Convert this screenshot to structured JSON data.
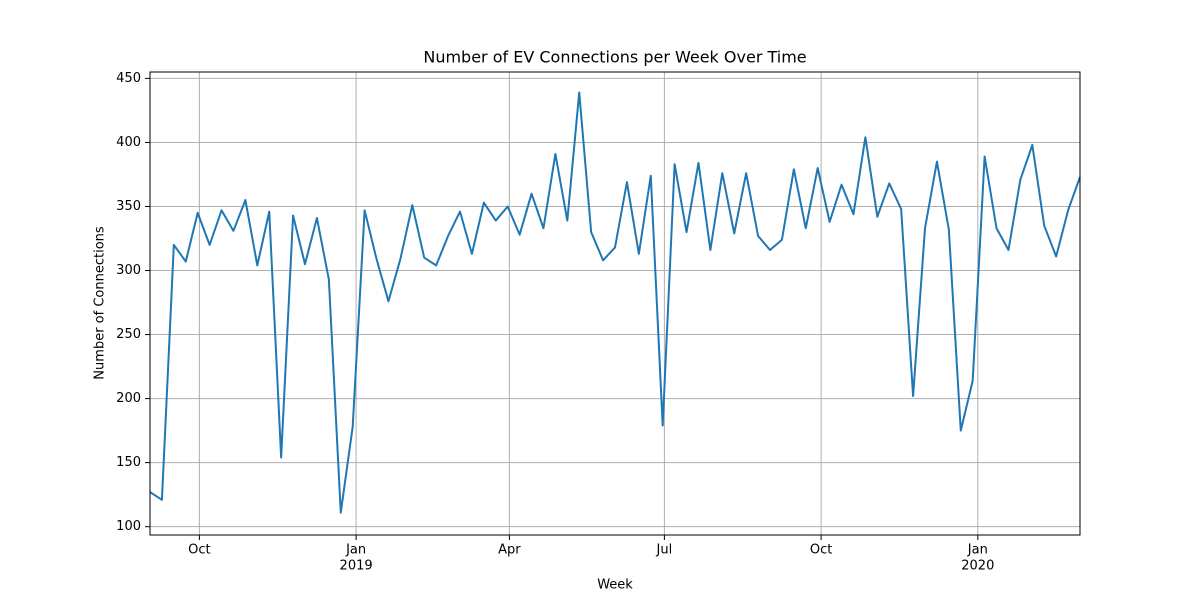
{
  "chart_data": {
    "type": "line",
    "title": "Number of EV Connections per Week Over Time",
    "x_label": "Week",
    "y_label": "Number of Connections",
    "x": [
      "2018-09-02",
      "2018-09-09",
      "2018-09-16",
      "2018-09-23",
      "2018-09-30",
      "2018-10-07",
      "2018-10-14",
      "2018-10-21",
      "2018-10-28",
      "2018-11-04",
      "2018-11-11",
      "2018-11-18",
      "2018-11-25",
      "2018-12-02",
      "2018-12-09",
      "2018-12-16",
      "2018-12-23",
      "2018-12-30",
      "2019-01-06",
      "2019-01-13",
      "2019-01-20",
      "2019-01-27",
      "2019-02-03",
      "2019-02-10",
      "2019-02-17",
      "2019-02-24",
      "2019-03-03",
      "2019-03-10",
      "2019-03-17",
      "2019-03-24",
      "2019-03-31",
      "2019-04-07",
      "2019-04-14",
      "2019-04-21",
      "2019-04-28",
      "2019-05-05",
      "2019-05-12",
      "2019-05-19",
      "2019-05-26",
      "2019-06-02",
      "2019-06-09",
      "2019-06-16",
      "2019-06-23",
      "2019-06-30",
      "2019-07-07",
      "2019-07-14",
      "2019-07-21",
      "2019-07-28",
      "2019-08-04",
      "2019-08-11",
      "2019-08-18",
      "2019-08-25",
      "2019-09-01",
      "2019-09-08",
      "2019-09-15",
      "2019-09-22",
      "2019-09-29",
      "2019-10-06",
      "2019-10-13",
      "2019-10-20",
      "2019-10-27",
      "2019-11-03",
      "2019-11-10",
      "2019-11-17",
      "2019-11-24",
      "2019-12-01",
      "2019-12-08",
      "2019-12-15",
      "2019-12-22",
      "2019-12-29",
      "2020-01-05",
      "2020-01-12",
      "2020-01-19",
      "2020-01-26",
      "2020-02-02",
      "2020-02-09",
      "2020-02-16",
      "2020-02-23",
      "2020-03-01"
    ],
    "series": [
      {
        "name": "Connections",
        "color": "#1f77b4",
        "values": [
          127,
          121,
          320,
          307,
          345,
          320,
          347,
          331,
          355,
          304,
          346,
          154,
          343,
          305,
          341,
          293,
          111,
          178,
          347,
          309,
          276,
          309,
          351,
          310,
          304,
          327,
          346,
          313,
          353,
          339,
          350,
          328,
          360,
          333,
          391,
          339,
          439,
          330,
          308,
          318,
          369,
          313,
          374,
          179,
          383,
          330,
          384,
          316,
          376,
          329,
          376,
          327,
          316,
          324,
          379,
          333,
          380,
          338,
          367,
          344,
          404,
          342,
          368,
          348,
          202,
          333,
          385,
          332,
          175,
          214,
          389,
          333,
          316,
          371,
          398,
          335,
          311,
          347,
          373
        ]
      }
    ],
    "xlim": [
      "2018-09-02",
      "2020-03-01"
    ],
    "xticks": [
      {
        "value": "2018-10-01",
        "label": "Oct"
      },
      {
        "value": "2019-01-01",
        "label": "Jan",
        "year": "2019"
      },
      {
        "value": "2019-04-01",
        "label": "Apr"
      },
      {
        "value": "2019-07-01",
        "label": "Jul"
      },
      {
        "value": "2019-10-01",
        "label": "Oct"
      },
      {
        "value": "2020-01-01",
        "label": "Jan",
        "year": "2020"
      }
    ],
    "ylim": [
      93.5,
      455
    ],
    "yticks": [
      100,
      150,
      200,
      250,
      300,
      350,
      400,
      450
    ],
    "grid": true
  }
}
